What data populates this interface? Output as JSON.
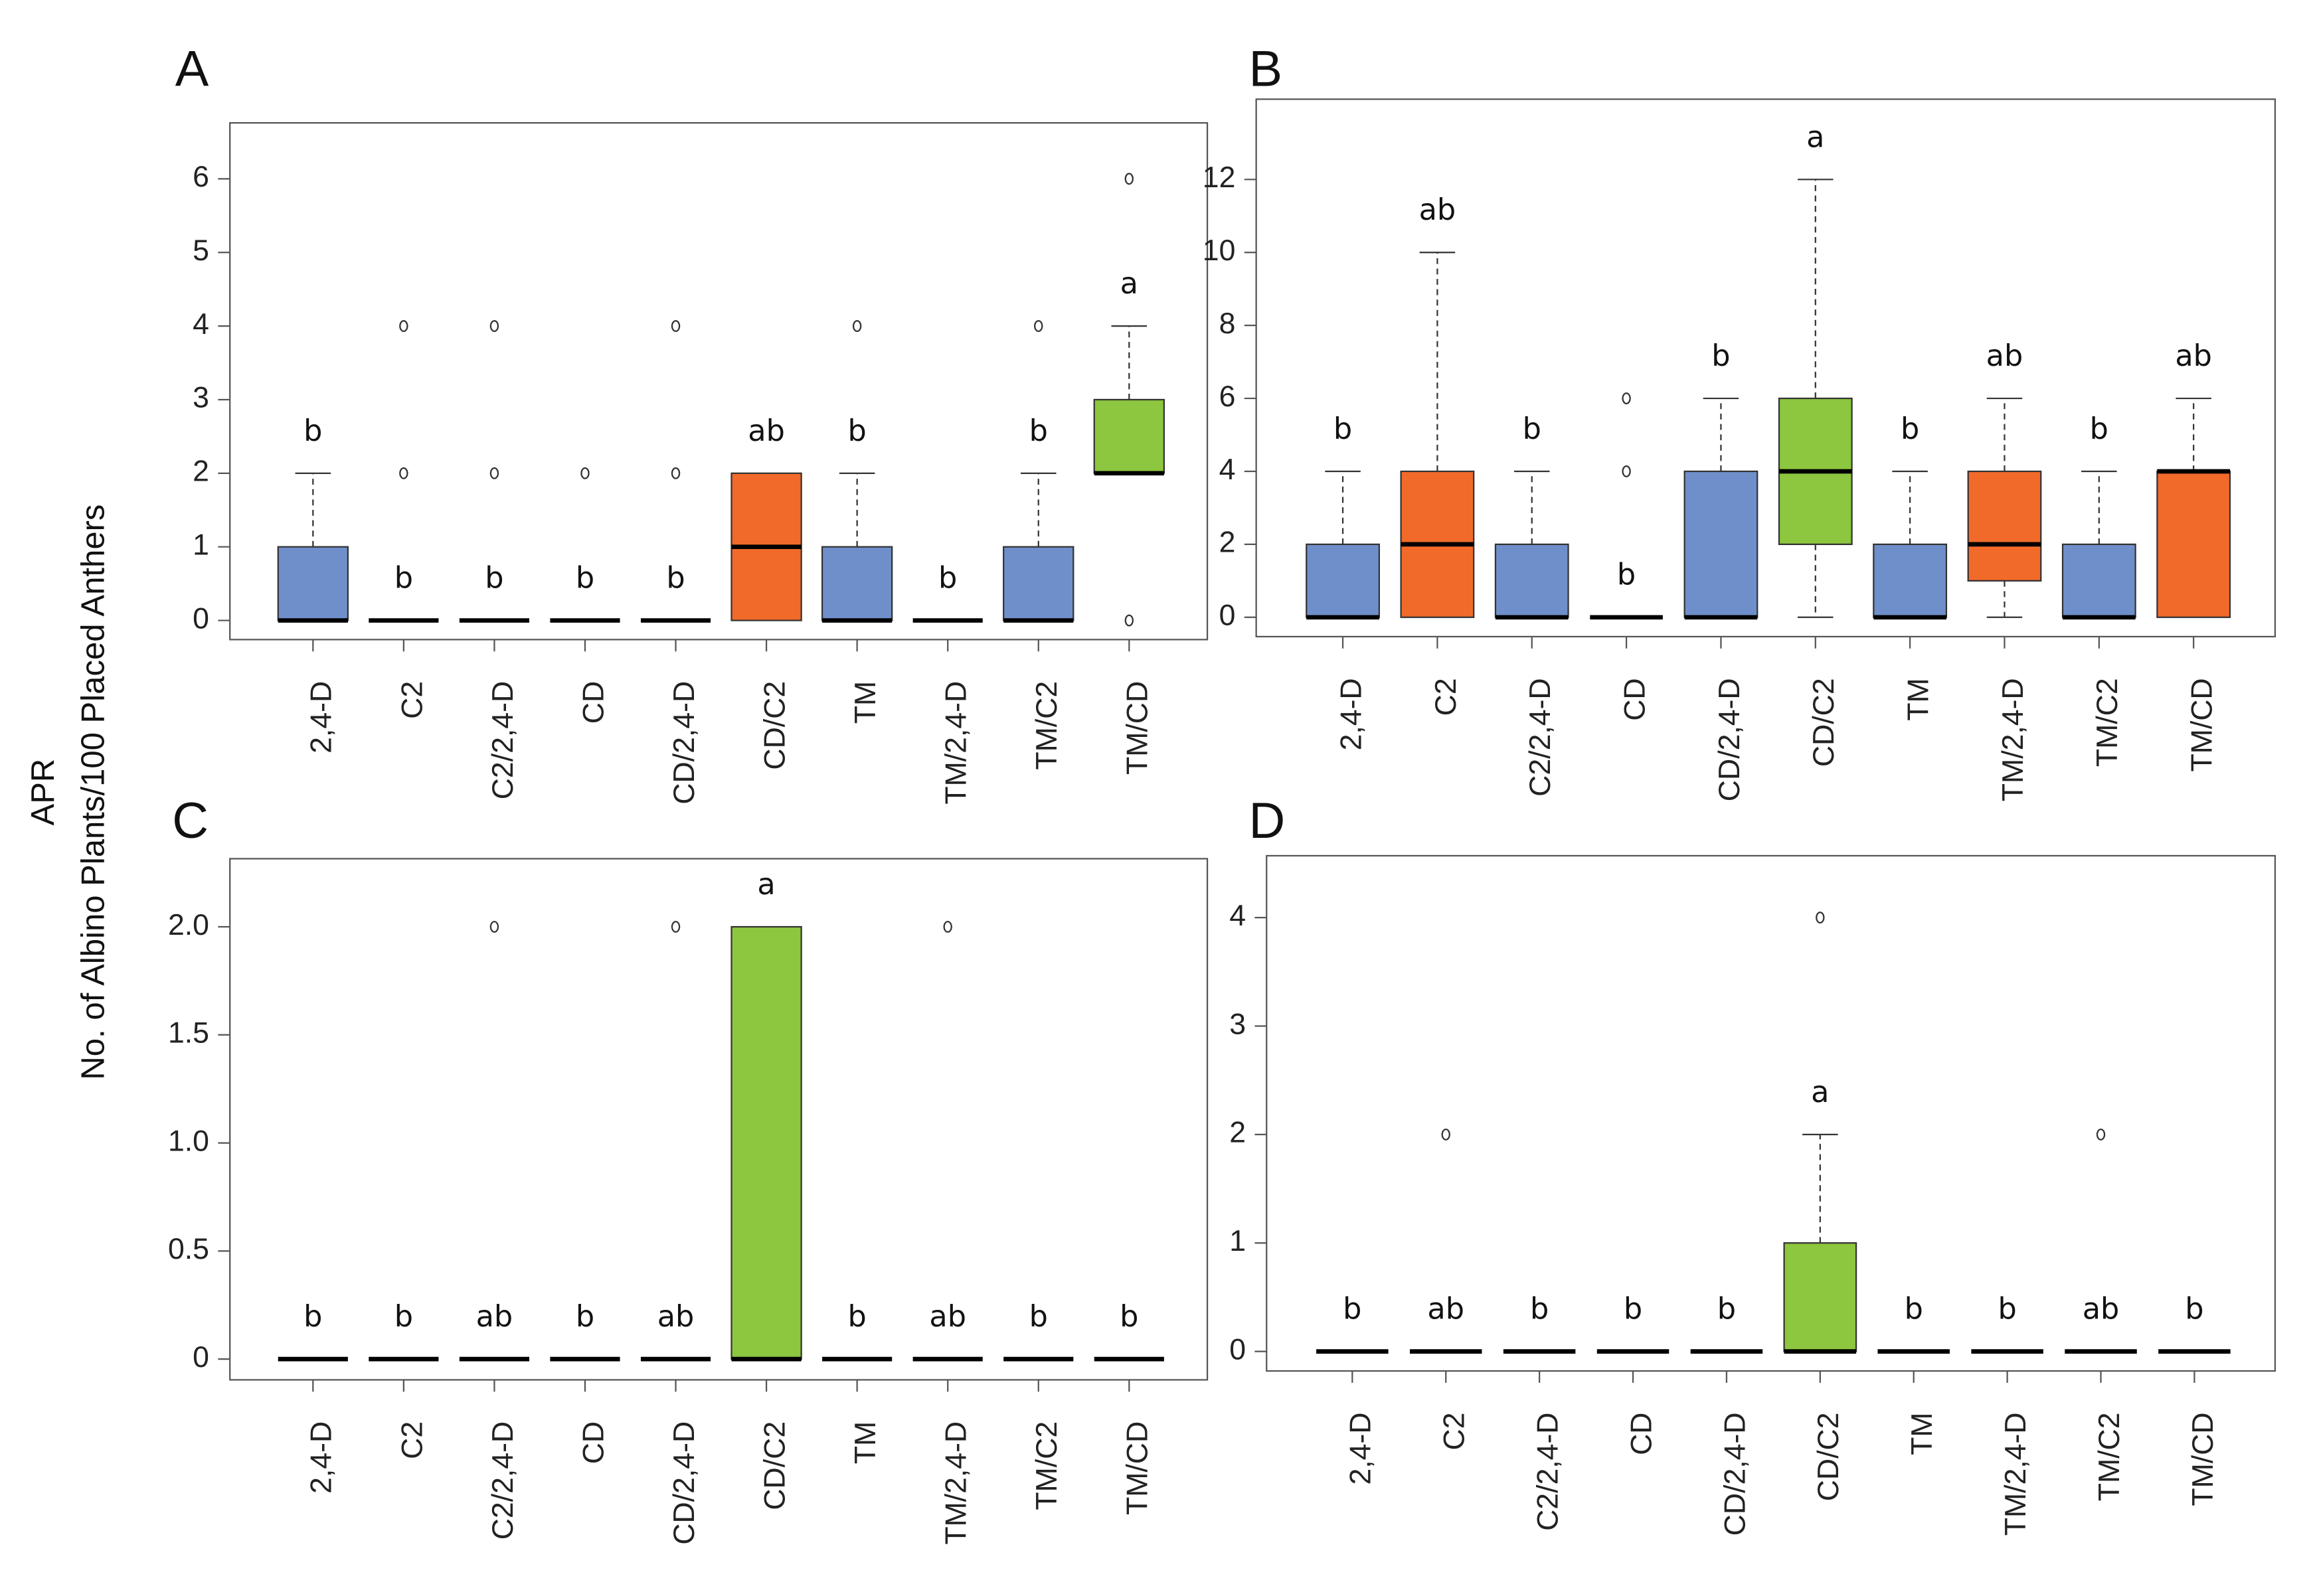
{
  "ylabel": [
    "APR",
    "No. of Albino Plants/100 Placed Anthers"
  ],
  "chart_data": [
    {
      "type": "box",
      "title": "A",
      "categories": [
        "2,4-D",
        "C2",
        "C2/2,4-D",
        "CD",
        "CD/2,4-D",
        "CD/C2",
        "TM",
        "TM/2,4-D",
        "TM/C2",
        "TM/CD"
      ],
      "colors": [
        "#6f8fca",
        "#6f8fca",
        "#6f8fca",
        "#6f8fca",
        "#6f8fca",
        "#f26a2a",
        "#6f8fca",
        "#6f8fca",
        "#6f8fca",
        "#8dc63f"
      ],
      "boxes": [
        {
          "low": 0,
          "q1": 0,
          "median": 0,
          "q3": 1,
          "high": 2,
          "outliers": []
        },
        {
          "low": 0,
          "q1": 0,
          "median": 0,
          "q3": 0,
          "high": 0,
          "outliers": [
            2,
            4
          ]
        },
        {
          "low": 0,
          "q1": 0,
          "median": 0,
          "q3": 0,
          "high": 0,
          "outliers": [
            2,
            4
          ]
        },
        {
          "low": 0,
          "q1": 0,
          "median": 0,
          "q3": 0,
          "high": 0,
          "outliers": [
            2
          ]
        },
        {
          "low": 0,
          "q1": 0,
          "median": 0,
          "q3": 0,
          "high": 0,
          "outliers": [
            2,
            4
          ]
        },
        {
          "low": 0,
          "q1": 0,
          "median": 1,
          "q3": 2,
          "high": 2,
          "outliers": []
        },
        {
          "low": 0,
          "q1": 0,
          "median": 0,
          "q3": 1,
          "high": 2,
          "outliers": [
            4
          ]
        },
        {
          "low": 0,
          "q1": 0,
          "median": 0,
          "q3": 0,
          "high": 0,
          "outliers": []
        },
        {
          "low": 0,
          "q1": 0,
          "median": 0,
          "q3": 1,
          "high": 2,
          "outliers": [
            4
          ]
        },
        {
          "low": 2,
          "q1": 2,
          "median": 2,
          "q3": 3,
          "high": 4,
          "outliers": [
            0,
            6
          ]
        }
      ],
      "letters": [
        "b",
        "b",
        "b",
        "b",
        "b",
        "ab",
        "b",
        "b",
        "b",
        "a"
      ],
      "ylim": [
        -0.26,
        6.76
      ],
      "yticks": [
        0,
        1,
        2,
        3,
        4,
        5,
        6
      ]
    },
    {
      "type": "box",
      "title": "B",
      "categories": [
        "2,4-D",
        "C2",
        "C2/2,4-D",
        "CD",
        "CD/2,4-D",
        "CD/C2",
        "TM",
        "TM/2,4-D",
        "TM/C2",
        "TM/CD"
      ],
      "colors": [
        "#6f8fca",
        "#f26a2a",
        "#6f8fca",
        "#6f8fca",
        "#6f8fca",
        "#8dc63f",
        "#6f8fca",
        "#f26a2a",
        "#6f8fca",
        "#f26a2a"
      ],
      "boxes": [
        {
          "low": 0,
          "q1": 0,
          "median": 0,
          "q3": 2,
          "high": 4,
          "outliers": []
        },
        {
          "low": 0,
          "q1": 0,
          "median": 2,
          "q3": 4,
          "high": 10,
          "outliers": []
        },
        {
          "low": 0,
          "q1": 0,
          "median": 0,
          "q3": 2,
          "high": 4,
          "outliers": []
        },
        {
          "low": 0,
          "q1": 0,
          "median": 0,
          "q3": 0,
          "high": 0,
          "outliers": [
            4,
            6
          ]
        },
        {
          "low": 0,
          "q1": 0,
          "median": 0,
          "q3": 4,
          "high": 6,
          "outliers": []
        },
        {
          "low": 0,
          "q1": 2,
          "median": 4,
          "q3": 6,
          "high": 12,
          "outliers": []
        },
        {
          "low": 0,
          "q1": 0,
          "median": 0,
          "q3": 2,
          "high": 4,
          "outliers": []
        },
        {
          "low": 0,
          "q1": 1,
          "median": 2,
          "q3": 4,
          "high": 6,
          "outliers": []
        },
        {
          "low": 0,
          "q1": 0,
          "median": 0,
          "q3": 2,
          "high": 4,
          "outliers": []
        },
        {
          "low": 0,
          "q1": 0,
          "median": 4,
          "q3": 4,
          "high": 6,
          "outliers": []
        }
      ],
      "letters": [
        "b",
        "ab",
        "b",
        "b",
        "b",
        "a",
        "b",
        "ab",
        "b",
        "ab"
      ],
      "ylim": [
        -0.53,
        14.2
      ],
      "yticks": [
        0,
        2,
        4,
        6,
        8,
        10,
        12
      ]
    },
    {
      "type": "box",
      "title": "C",
      "categories": [
        "2,4-D",
        "C2",
        "C2/2,4-D",
        "CD",
        "CD/2,4-D",
        "CD/C2",
        "TM",
        "TM/2,4-D",
        "TM/C2",
        "TM/CD"
      ],
      "colors": [
        "#6f8fca",
        "#6f8fca",
        "#6f8fca",
        "#6f8fca",
        "#6f8fca",
        "#8dc63f",
        "#6f8fca",
        "#6f8fca",
        "#6f8fca",
        "#6f8fca"
      ],
      "boxes": [
        {
          "low": 0,
          "q1": 0,
          "median": 0,
          "q3": 0,
          "high": 0,
          "outliers": []
        },
        {
          "low": 0,
          "q1": 0,
          "median": 0,
          "q3": 0,
          "high": 0,
          "outliers": []
        },
        {
          "low": 0,
          "q1": 0,
          "median": 0,
          "q3": 0,
          "high": 0,
          "outliers": [
            2
          ]
        },
        {
          "low": 0,
          "q1": 0,
          "median": 0,
          "q3": 0,
          "high": 0,
          "outliers": []
        },
        {
          "low": 0,
          "q1": 0,
          "median": 0,
          "q3": 0,
          "high": 0,
          "outliers": [
            2
          ]
        },
        {
          "low": 0,
          "q1": 0,
          "median": 0,
          "q3": 2,
          "high": 2,
          "outliers": []
        },
        {
          "low": 0,
          "q1": 0,
          "median": 0,
          "q3": 0,
          "high": 0,
          "outliers": []
        },
        {
          "low": 0,
          "q1": 0,
          "median": 0,
          "q3": 0,
          "high": 0,
          "outliers": [
            2
          ]
        },
        {
          "low": 0,
          "q1": 0,
          "median": 0,
          "q3": 0,
          "high": 0,
          "outliers": []
        },
        {
          "low": 0,
          "q1": 0,
          "median": 0,
          "q3": 0,
          "high": 0,
          "outliers": []
        }
      ],
      "letters": [
        "b",
        "b",
        "ab",
        "b",
        "ab",
        "a",
        "b",
        "ab",
        "b",
        "b"
      ],
      "ylim": [
        -0.096,
        2.315
      ],
      "yticks": [
        0,
        0.5,
        {
          "value": 1,
          "label": "1.0"
        },
        1.5,
        {
          "value": 2,
          "label": "2.0"
        }
      ]
    },
    {
      "type": "box",
      "title": "D",
      "categories": [
        "2,4-D",
        "C2",
        "C2/2,4-D",
        "CD",
        "CD/2,4-D",
        "CD/C2",
        "TM",
        "TM/2,4-D",
        "TM/C2",
        "TM/CD"
      ],
      "colors": [
        "#6f8fca",
        "#6f8fca",
        "#6f8fca",
        "#6f8fca",
        "#6f8fca",
        "#8dc63f",
        "#6f8fca",
        "#6f8fca",
        "#6f8fca",
        "#6f8fca"
      ],
      "boxes": [
        {
          "low": 0,
          "q1": 0,
          "median": 0,
          "q3": 0,
          "high": 0,
          "outliers": []
        },
        {
          "low": 0,
          "q1": 0,
          "median": 0,
          "q3": 0,
          "high": 0,
          "outliers": [
            2
          ]
        },
        {
          "low": 0,
          "q1": 0,
          "median": 0,
          "q3": 0,
          "high": 0,
          "outliers": []
        },
        {
          "low": 0,
          "q1": 0,
          "median": 0,
          "q3": 0,
          "high": 0,
          "outliers": []
        },
        {
          "low": 0,
          "q1": 0,
          "median": 0,
          "q3": 0,
          "high": 0,
          "outliers": []
        },
        {
          "low": 0,
          "q1": 0,
          "median": 0,
          "q3": 1,
          "high": 2,
          "outliers": [
            4
          ]
        },
        {
          "low": 0,
          "q1": 0,
          "median": 0,
          "q3": 0,
          "high": 0,
          "outliers": []
        },
        {
          "low": 0,
          "q1": 0,
          "median": 0,
          "q3": 0,
          "high": 0,
          "outliers": []
        },
        {
          "low": 0,
          "q1": 0,
          "median": 0,
          "q3": 0,
          "high": 0,
          "outliers": [
            2
          ]
        },
        {
          "low": 0,
          "q1": 0,
          "median": 0,
          "q3": 0,
          "high": 0,
          "outliers": []
        }
      ],
      "letters": [
        "b",
        "ab",
        "b",
        "b",
        "b",
        "a",
        "b",
        "b",
        "ab",
        "b"
      ],
      "ylim": [
        -0.18,
        4.57
      ],
      "yticks": [
        0,
        1,
        2,
        3,
        4
      ]
    }
  ]
}
